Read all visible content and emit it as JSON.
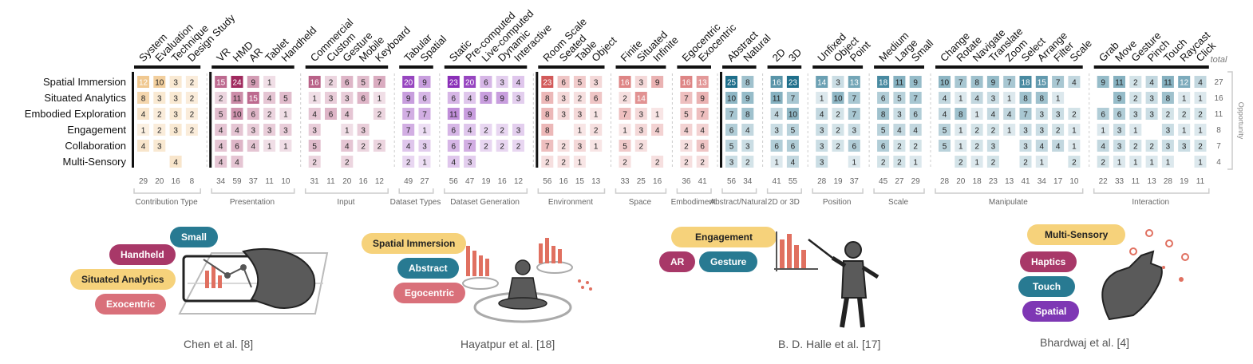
{
  "colors": {
    "yellow": "#f6d27b",
    "magenta": "#a83868",
    "teal": "#287a92",
    "rose": "#d9707a",
    "purple": "#7e37b4",
    "orange_cell": "#e6a040",
    "pink_cell": "#a02a5e",
    "rose_cell": "#d25a5a",
    "violet_cell": "#8a2fb8",
    "blue_cell": "#1f6f8b"
  },
  "chart_data": {
    "type": "heatmap",
    "total_label": "total",
    "opportunity_label": "Opportunity",
    "rows": [
      "Spatial Immersion",
      "Situated Analytics",
      "Embodied Exploration",
      "Engagement",
      "Collaboration",
      "Multi-Sensory"
    ],
    "row_totals": [
      27,
      16,
      11,
      8,
      7,
      4
    ],
    "groups": [
      {
        "name": "Contribution Type",
        "hue": "orange",
        "columns": [
          "System",
          "Evaluation",
          "Technique",
          "Design Study"
        ],
        "totals": [
          29,
          20,
          16,
          8
        ],
        "values": [
          [
            12,
            10,
            3,
            2
          ],
          [
            8,
            3,
            3,
            2
          ],
          [
            4,
            2,
            3,
            2
          ],
          [
            1,
            2,
            3,
            2
          ],
          [
            4,
            3,
            null,
            null
          ],
          [
            null,
            null,
            4,
            null
          ]
        ]
      },
      {
        "name": "Presentation",
        "hue": "pink",
        "columns": [
          "VR",
          "HMD",
          "AR",
          "Tablet",
          "Handheld"
        ],
        "totals": [
          34,
          59,
          37,
          11,
          10
        ],
        "values": [
          [
            15,
            24,
            9,
            1,
            null
          ],
          [
            2,
            11,
            15,
            4,
            5
          ],
          [
            5,
            10,
            6,
            2,
            1
          ],
          [
            4,
            4,
            3,
            3,
            3
          ],
          [
            4,
            6,
            4,
            1,
            1
          ],
          [
            4,
            4,
            null,
            null,
            null
          ]
        ]
      },
      {
        "name": "Input",
        "hue": "pink",
        "columns": [
          "Commercial",
          "Custom",
          "Gesture",
          "Mobile",
          "Keyboard"
        ],
        "totals": [
          31,
          11,
          20,
          16,
          12
        ],
        "values": [
          [
            16,
            2,
            6,
            5,
            7
          ],
          [
            1,
            3,
            3,
            6,
            1
          ],
          [
            4,
            6,
            4,
            null,
            2
          ],
          [
            3,
            null,
            1,
            3,
            null
          ],
          [
            5,
            null,
            4,
            2,
            2
          ],
          [
            2,
            null,
            2,
            null,
            null
          ]
        ]
      },
      {
        "name": "Dataset Types",
        "hue": "violet",
        "columns": [
          "Tabular",
          "Spatial"
        ],
        "totals": [
          49,
          27
        ],
        "values": [
          [
            20,
            9
          ],
          [
            9,
            6
          ],
          [
            7,
            7
          ],
          [
            7,
            1
          ],
          [
            4,
            3
          ],
          [
            2,
            1
          ]
        ]
      },
      {
        "name": "Dataset Generation",
        "hue": "violet",
        "columns": [
          "Static",
          "Pre-computed",
          "Live-computed",
          "Dynamic",
          "Interactive"
        ],
        "totals": [
          56,
          47,
          19,
          16,
          12
        ],
        "values": [
          [
            23,
            20,
            6,
            3,
            4
          ],
          [
            6,
            4,
            9,
            9,
            3
          ],
          [
            11,
            9,
            null,
            null,
            null
          ],
          [
            6,
            4,
            2,
            2,
            3
          ],
          [
            6,
            7,
            2,
            2,
            2
          ],
          [
            4,
            3,
            null,
            null,
            null
          ]
        ]
      },
      {
        "name": "Environment",
        "hue": "rose",
        "columns": [
          "Room Scale",
          "Seated",
          "Table",
          "Object"
        ],
        "totals": [
          56,
          16,
          15,
          13
        ],
        "values": [
          [
            23,
            6,
            5,
            3
          ],
          [
            8,
            3,
            2,
            6
          ],
          [
            8,
            3,
            3,
            1
          ],
          [
            8,
            null,
            1,
            2
          ],
          [
            7,
            2,
            3,
            1
          ],
          [
            2,
            2,
            1,
            null
          ]
        ]
      },
      {
        "name": "Space",
        "hue": "rose",
        "columns": [
          "Finite",
          "Situated",
          "Infinite"
        ],
        "totals": [
          33,
          25,
          16
        ],
        "values": [
          [
            16,
            3,
            9
          ],
          [
            2,
            14,
            null
          ],
          [
            7,
            3,
            1
          ],
          [
            1,
            3,
            4
          ],
          [
            5,
            2,
            null
          ],
          [
            2,
            null,
            2
          ]
        ]
      },
      {
        "name": "Embodiment",
        "hue": "rose",
        "columns": [
          "Egocentric",
          "Exocentric"
        ],
        "totals": [
          36,
          41
        ],
        "values": [
          [
            16,
            13
          ],
          [
            7,
            9
          ],
          [
            5,
            7
          ],
          [
            4,
            4
          ],
          [
            2,
            6
          ],
          [
            2,
            2
          ]
        ]
      },
      {
        "name": "Abstract/Natural",
        "hue": "blue",
        "columns": [
          "Abstract",
          "Natural"
        ],
        "totals": [
          56,
          34
        ],
        "values": [
          [
            25,
            8
          ],
          [
            10,
            9
          ],
          [
            7,
            8
          ],
          [
            6,
            4
          ],
          [
            5,
            3
          ],
          [
            3,
            2
          ]
        ]
      },
      {
        "name": "2D or 3D",
        "hue": "blue",
        "columns": [
          "2D",
          "3D"
        ],
        "totals": [
          41,
          55
        ],
        "values": [
          [
            16,
            23
          ],
          [
            11,
            7
          ],
          [
            4,
            10
          ],
          [
            3,
            5
          ],
          [
            6,
            6
          ],
          [
            1,
            4
          ]
        ]
      },
      {
        "name": "Position",
        "hue": "blue",
        "columns": [
          "Unfixed",
          "Object",
          "Point"
        ],
        "totals": [
          28,
          19,
          37
        ],
        "values": [
          [
            14,
            3,
            13
          ],
          [
            1,
            10,
            7
          ],
          [
            4,
            2,
            7
          ],
          [
            3,
            2,
            3
          ],
          [
            3,
            2,
            6
          ],
          [
            3,
            null,
            1
          ]
        ]
      },
      {
        "name": "Scale",
        "hue": "blue",
        "columns": [
          "Medium",
          "Large",
          "Small"
        ],
        "totals": [
          45,
          27,
          29
        ],
        "values": [
          [
            18,
            11,
            9
          ],
          [
            6,
            5,
            7
          ],
          [
            8,
            3,
            6
          ],
          [
            5,
            4,
            4
          ],
          [
            6,
            2,
            2
          ],
          [
            2,
            2,
            1
          ]
        ]
      },
      {
        "name": "Manipulate",
        "hue": "blue",
        "columns": [
          "Change",
          "Rotate",
          "Navigate",
          "Translate",
          "Zoom",
          "Select",
          "Arrange",
          "Filter",
          "Scale"
        ],
        "totals": [
          28,
          20,
          18,
          23,
          13,
          41,
          34,
          17,
          10
        ],
        "values": [
          [
            10,
            7,
            8,
            9,
            7,
            18,
            15,
            7,
            4
          ],
          [
            4,
            1,
            4,
            3,
            1,
            8,
            8,
            1,
            null
          ],
          [
            4,
            8,
            1,
            4,
            4,
            7,
            3,
            3,
            2
          ],
          [
            5,
            1,
            2,
            2,
            1,
            3,
            3,
            2,
            1
          ],
          [
            5,
            1,
            2,
            3,
            null,
            3,
            4,
            4,
            1
          ],
          [
            null,
            2,
            1,
            2,
            null,
            2,
            1,
            null,
            2
          ]
        ]
      },
      {
        "name": "Interaction",
        "hue": "blue",
        "columns": [
          "Grab",
          "Move",
          "Gesture",
          "Pinch",
          "Touch",
          "Raycast",
          "Click"
        ],
        "totals": [
          22,
          33,
          11,
          13,
          28,
          19,
          11
        ],
        "values": [
          [
            9,
            11,
            2,
            4,
            11,
            12,
            4
          ],
          [
            null,
            9,
            2,
            3,
            8,
            1,
            1
          ],
          [
            6,
            6,
            3,
            3,
            2,
            2,
            2
          ],
          [
            1,
            3,
            1,
            null,
            3,
            1,
            1
          ],
          [
            4,
            3,
            2,
            2,
            3,
            3,
            2
          ],
          [
            2,
            1,
            1,
            1,
            1,
            null,
            1
          ]
        ]
      }
    ]
  },
  "examples": [
    {
      "caption": "Chen et al. [8]",
      "pills": [
        {
          "text": "Small",
          "color": "teal"
        },
        {
          "text": "Handheld",
          "color": "magenta"
        },
        {
          "text": "Situated Analytics",
          "color": "yellow"
        },
        {
          "text": "Exocentric",
          "color": "rose"
        }
      ]
    },
    {
      "caption": "Hayatpur et al. [18]",
      "pills": [
        {
          "text": "Spatial Immersion",
          "color": "yellow"
        },
        {
          "text": "Abstract",
          "color": "teal"
        },
        {
          "text": "Egocentric",
          "color": "rose"
        }
      ]
    },
    {
      "caption": "B. D. Halle et al. [17]",
      "pills": [
        {
          "text": "Engagement",
          "color": "yellow"
        },
        {
          "text": "AR",
          "color": "magenta"
        },
        {
          "text": "Gesture",
          "color": "teal"
        }
      ]
    },
    {
      "caption": "Bhardwaj et al. [4]",
      "pills": [
        {
          "text": "Multi-Sensory",
          "color": "yellow"
        },
        {
          "text": "Haptics",
          "color": "magenta"
        },
        {
          "text": "Touch",
          "color": "teal"
        },
        {
          "text": "Spatial",
          "color": "purple"
        }
      ]
    }
  ]
}
